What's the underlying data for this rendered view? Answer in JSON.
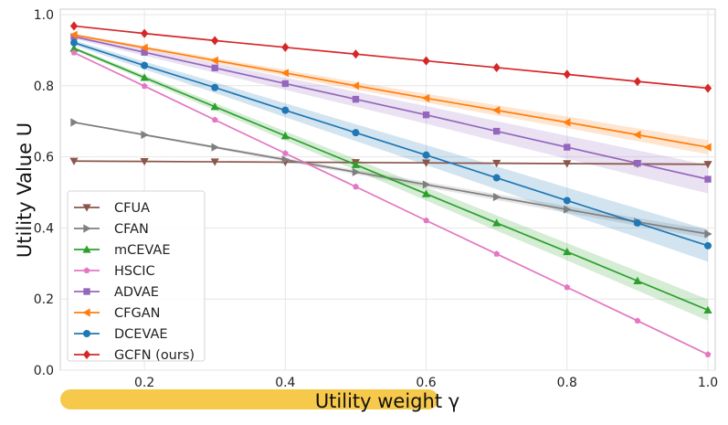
{
  "chart_data": {
    "type": "line",
    "xlabel": "Utility weight γ",
    "ylabel": "Utility Value U",
    "xlim": [
      0.1,
      1.0
    ],
    "ylim": [
      0.0,
      1.0
    ],
    "xticks": [
      "0.2",
      "0.4",
      "0.6",
      "0.8",
      "1.0"
    ],
    "yticks": [
      "0.0",
      "0.2",
      "0.4",
      "0.6",
      "0.8",
      "1.0"
    ],
    "grid": true,
    "legend_position": "lower-left",
    "x": [
      0.1,
      0.2,
      0.3,
      0.4,
      0.5,
      0.6,
      0.7,
      0.8,
      0.9,
      1.0
    ],
    "series": [
      {
        "name": "CFUA",
        "color": "#8c564b",
        "marker": "triangle-down",
        "values": [
          0.588,
          0.587,
          0.586,
          0.585,
          0.584,
          0.583,
          0.582,
          0.581,
          0.58,
          0.579
        ],
        "band": 0.003
      },
      {
        "name": "CFAN",
        "color": "#7f7f7f",
        "marker": "triangle-right",
        "values": [
          0.697,
          0.662,
          0.627,
          0.592,
          0.557,
          0.522,
          0.487,
          0.452,
          0.417,
          0.383
        ],
        "band": 0.012
      },
      {
        "name": "mCEVAE",
        "color": "#2ca02c",
        "marker": "triangle-up",
        "values": [
          0.905,
          0.823,
          0.741,
          0.659,
          0.578,
          0.496,
          0.414,
          0.333,
          0.251,
          0.169
        ],
        "band": 0.03
      },
      {
        "name": "HSCIC",
        "color": "#e377c2",
        "marker": "pentagon",
        "values": [
          0.893,
          0.799,
          0.704,
          0.61,
          0.516,
          0.421,
          0.327,
          0.233,
          0.139,
          0.044
        ],
        "band": 0.0
      },
      {
        "name": "ADVAE",
        "color": "#9467bd",
        "marker": "square",
        "values": [
          0.938,
          0.894,
          0.85,
          0.806,
          0.762,
          0.718,
          0.672,
          0.627,
          0.582,
          0.537
        ],
        "band": 0.04
      },
      {
        "name": "CFGAN",
        "color": "#ff7f0e",
        "marker": "triangle-left",
        "values": [
          0.943,
          0.907,
          0.871,
          0.836,
          0.8,
          0.765,
          0.731,
          0.697,
          0.662,
          0.627
        ],
        "band": 0.02
      },
      {
        "name": "DCEVAE",
        "color": "#1f77b4",
        "marker": "circle",
        "values": [
          0.921,
          0.857,
          0.795,
          0.731,
          0.668,
          0.605,
          0.541,
          0.477,
          0.414,
          0.35
        ],
        "band": 0.045
      },
      {
        "name": "GCFN (ours)",
        "color": "#d62728",
        "marker": "diamond",
        "values": [
          0.968,
          0.947,
          0.927,
          0.908,
          0.889,
          0.87,
          0.851,
          0.832,
          0.812,
          0.793
        ],
        "band": 0.0
      }
    ]
  },
  "colors": {
    "xlabel_highlight": "#f7c94b",
    "grid": "#e6e6e6",
    "axes_border": "#cccccc"
  }
}
